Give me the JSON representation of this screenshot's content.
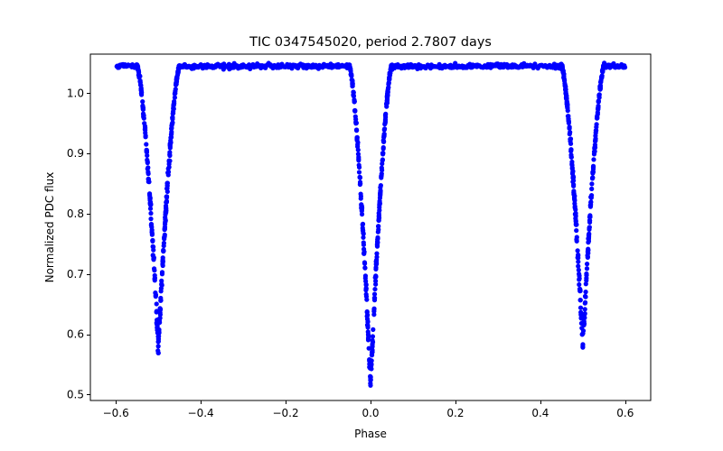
{
  "chart_data": {
    "type": "scatter",
    "title": "TIC 0347545020, period 2.7807 days",
    "xlabel": "Phase",
    "ylabel": "Normalized PDC flux",
    "xlim": [
      -0.66,
      0.66
    ],
    "ylim": [
      0.49,
      1.065
    ],
    "xticks": [
      -0.6,
      -0.4,
      -0.2,
      0.0,
      0.2,
      0.4,
      0.6
    ],
    "xtick_labels": [
      "−0.6",
      "−0.4",
      "−0.2",
      "0.0",
      "0.2",
      "0.4",
      "0.6"
    ],
    "yticks": [
      0.5,
      0.6,
      0.7,
      0.8,
      0.9,
      1.0
    ],
    "ytick_labels": [
      "0.5",
      "0.6",
      "0.7",
      "0.8",
      "0.9",
      "1.0"
    ],
    "grid": false,
    "marker_color": "#0000ff",
    "series": [
      {
        "name": "phase-folded light curve",
        "baseline_flux": 1.045,
        "phase_range": [
          -0.6,
          0.6
        ],
        "eclipses": [
          {
            "name": "secondary eclipse",
            "center_phase": -0.5,
            "min_flux": 0.58,
            "half_width_phase": 0.05
          },
          {
            "name": "primary eclipse",
            "center_phase": 0.0,
            "min_flux": 0.515,
            "half_width_phase": 0.05
          },
          {
            "name": "secondary eclipse",
            "center_phase": 0.5,
            "min_flux": 0.58,
            "half_width_phase": 0.05
          }
        ]
      }
    ]
  }
}
